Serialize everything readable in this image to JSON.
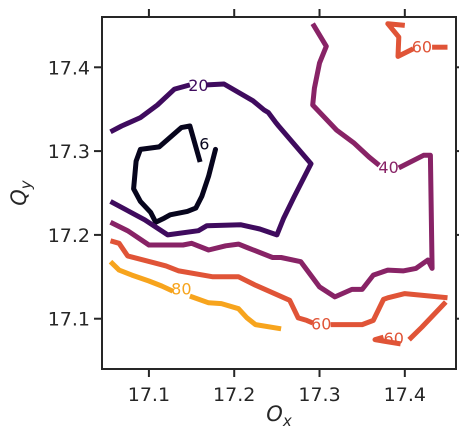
{
  "chart_data": {
    "type": "contour",
    "xlabel": "O",
    "xlabel_sub": "x",
    "ylabel": "Q",
    "ylabel_sub": "y",
    "xlim": [
      17.045,
      17.46
    ],
    "ylim": [
      17.04,
      17.46
    ],
    "x_ticks": [
      17.1,
      17.2,
      17.3,
      17.4
    ],
    "y_ticks": [
      17.1,
      17.2,
      17.3,
      17.4
    ],
    "x_tick_labels": [
      "17.1",
      "17.2",
      "17.3",
      "17.4"
    ],
    "y_tick_labels": [
      "17.1",
      "17.2",
      "17.3",
      "17.4"
    ],
    "grid": false,
    "levels": [
      {
        "level": 6,
        "label": "6",
        "color": "#07051d",
        "segments": [
          [
            [
              17.16,
              17.287
            ],
            [
              17.148,
              17.33
            ],
            [
              17.138,
              17.328
            ],
            [
              17.112,
              17.305
            ],
            [
              17.09,
              17.302
            ],
            [
              17.085,
              17.288
            ],
            [
              17.082,
              17.255
            ],
            [
              17.09,
              17.24
            ],
            [
              17.102,
              17.227
            ],
            [
              17.108,
              17.215
            ],
            [
              17.118,
              17.22
            ],
            [
              17.125,
              17.224
            ],
            [
              17.145,
              17.228
            ],
            [
              17.155,
              17.232
            ],
            [
              17.162,
              17.246
            ],
            [
              17.17,
              17.27
            ],
            [
              17.178,
              17.302
            ],
            [
              17.175,
              17.29
            ]
          ]
        ],
        "labels": [
          {
            "x": 17.165,
            "y": 17.309,
            "text": "6"
          }
        ]
      },
      {
        "level": 20,
        "label": "20",
        "color": "#3f0b5e",
        "segments": [
          [
            [
              17.055,
              17.323
            ],
            [
              17.068,
              17.33
            ],
            [
              17.09,
              17.34
            ],
            [
              17.11,
              17.355
            ],
            [
              17.13,
              17.374
            ],
            [
              17.148,
              17.379
            ]
          ],
          [
            [
              17.168,
              17.379
            ],
            [
              17.188,
              17.38
            ],
            [
              17.222,
              17.36
            ],
            [
              17.235,
              17.349
            ],
            [
              17.24,
              17.346
            ],
            [
              17.248,
              17.335
            ],
            [
              17.252,
              17.33
            ],
            [
              17.29,
              17.285
            ],
            [
              17.27,
              17.245
            ],
            [
              17.258,
              17.22
            ],
            [
              17.25,
              17.2
            ],
            [
              17.23,
              17.207
            ],
            [
              17.208,
              17.212
            ],
            [
              17.168,
              17.211
            ],
            [
              17.158,
              17.205
            ],
            [
              17.122,
              17.2
            ],
            [
              17.095,
              17.218
            ],
            [
              17.055,
              17.24
            ]
          ]
        ],
        "labels": [
          {
            "x": 17.158,
            "y": 17.379,
            "text": "20"
          }
        ]
      },
      {
        "level": 40,
        "label": "40",
        "color": "#882366",
        "segments": [
          [
            [
              17.292,
              17.452
            ],
            [
              17.308,
              17.425
            ],
            [
              17.3,
              17.405
            ],
            [
              17.294,
              17.375
            ],
            [
              17.292,
              17.355
            ],
            [
              17.32,
              17.325
            ],
            [
              17.34,
              17.31
            ],
            [
              17.358,
              17.293
            ],
            [
              17.37,
              17.283
            ]
          ],
          [
            [
              17.393,
              17.28
            ],
            [
              17.422,
              17.295
            ],
            [
              17.43,
              17.295
            ],
            [
              17.432,
              17.16
            ],
            [
              17.427,
              17.17
            ],
            [
              17.413,
              17.16
            ],
            [
              17.398,
              17.157
            ],
            [
              17.38,
              17.158
            ],
            [
              17.363,
              17.152
            ],
            [
              17.35,
              17.135
            ],
            [
              17.338,
              17.135
            ],
            [
              17.318,
              17.126
            ],
            [
              17.3,
              17.138
            ],
            [
              17.278,
              17.168
            ],
            [
              17.255,
              17.173
            ],
            [
              17.245,
              17.173
            ],
            [
              17.215,
              17.185
            ],
            [
              17.205,
              17.189
            ],
            [
              17.19,
              17.187
            ],
            [
              17.17,
              17.182
            ],
            [
              17.15,
              17.19
            ],
            [
              17.14,
              17.188
            ],
            [
              17.1,
              17.188
            ],
            [
              17.075,
              17.205
            ],
            [
              17.055,
              17.215
            ]
          ]
        ],
        "labels": [
          {
            "x": 17.381,
            "y": 17.281,
            "text": "40"
          }
        ]
      },
      {
        "level": 60,
        "label": "60",
        "color": "#e05437",
        "segments": [
          [
            [
              17.055,
              17.193
            ],
            [
              17.065,
              17.19
            ],
            [
              17.075,
              17.175
            ],
            [
              17.105,
              17.167
            ],
            [
              17.12,
              17.163
            ],
            [
              17.135,
              17.157
            ],
            [
              17.175,
              17.15
            ],
            [
              17.205,
              17.15
            ],
            [
              17.225,
              17.14
            ],
            [
              17.265,
              17.122
            ],
            [
              17.275,
              17.101
            ],
            [
              17.285,
              17.098
            ],
            [
              17.292,
              17.095
            ]
          ],
          [
            [
              17.313,
              17.093
            ],
            [
              17.35,
              17.093
            ],
            [
              17.363,
              17.098
            ],
            [
              17.375,
              17.123
            ],
            [
              17.38,
              17.125
            ],
            [
              17.4,
              17.13
            ],
            [
              17.45,
              17.125
            ]
          ],
          [
            [
              17.448,
              17.12
            ],
            [
              17.42,
              17.09
            ],
            [
              17.405,
              17.075
            ]
          ],
          [
            [
              17.375,
              17.078
            ],
            [
              17.365,
              17.075
            ],
            [
              17.395,
              17.07
            ]
          ],
          [
            [
              17.4,
              17.45
            ],
            [
              17.38,
              17.452
            ],
            [
              17.393,
              17.436
            ],
            [
              17.392,
              17.413
            ],
            [
              17.41,
              17.422
            ]
          ],
          [
            [
              17.432,
              17.424
            ],
            [
              17.45,
              17.424
            ]
          ]
        ],
        "labels": [
          {
            "x": 17.302,
            "y": 17.094,
            "text": "60"
          },
          {
            "x": 17.387,
            "y": 17.077,
            "text": "60"
          },
          {
            "x": 17.42,
            "y": 17.425,
            "text": "60"
          }
        ]
      },
      {
        "level": 80,
        "label": "80",
        "color": "#f7a41d",
        "segments": [
          [
            [
              17.055,
              17.168
            ],
            [
              17.065,
              17.158
            ],
            [
              17.08,
              17.152
            ],
            [
              17.1,
              17.145
            ],
            [
              17.115,
              17.139
            ],
            [
              17.128,
              17.133
            ]
          ],
          [
            [
              17.148,
              17.127
            ],
            [
              17.17,
              17.119
            ],
            [
              17.185,
              17.118
            ],
            [
              17.205,
              17.112
            ],
            [
              17.215,
              17.101
            ],
            [
              17.225,
              17.093
            ],
            [
              17.255,
              17.088
            ]
          ]
        ],
        "labels": [
          {
            "x": 17.138,
            "y": 17.136,
            "text": "80"
          }
        ]
      }
    ]
  }
}
